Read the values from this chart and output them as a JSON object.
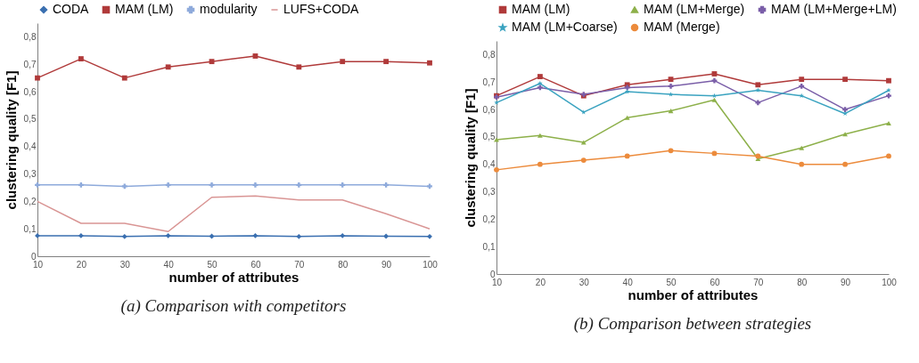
{
  "chart_data": [
    {
      "type": "line",
      "title": "(a)  Comparison with competitors",
      "xlabel": "number of attributes",
      "ylabel": "clustering quality [F1]",
      "categories": [
        "10",
        "20",
        "30",
        "40",
        "50",
        "60",
        "70",
        "80",
        "90",
        "100"
      ],
      "ylim": [
        0,
        0.85
      ],
      "yticks": [
        0,
        {
          "value": 0.1,
          "label": "0,1"
        },
        {
          "value": 0.2,
          "label": "0,2"
        },
        {
          "value": 0.3,
          "label": "0,3"
        },
        {
          "value": 0.4,
          "label": "0,4"
        },
        {
          "value": 0.5,
          "label": "0,5"
        },
        {
          "value": 0.6,
          "label": "0,6"
        },
        {
          "value": 0.7,
          "label": "0,7"
        },
        {
          "value": 0.8,
          "label": "0,8"
        }
      ],
      "legend": "top",
      "series": [
        {
          "name": "CODA",
          "color": "#3a6fb0",
          "marker": "diamond",
          "values": [
            0.075,
            0.075,
            0.072,
            0.075,
            0.073,
            0.075,
            0.072,
            0.075,
            0.073,
            0.072
          ]
        },
        {
          "name": "MAM (LM)",
          "color": "#b03a3a",
          "marker": "square",
          "values": [
            0.65,
            0.72,
            0.65,
            0.69,
            0.71,
            0.73,
            0.69,
            0.71,
            0.71,
            0.705
          ]
        },
        {
          "name": "modularity",
          "color": "#8eaadb",
          "marker": "cross",
          "values": [
            0.26,
            0.26,
            0.255,
            0.26,
            0.26,
            0.26,
            0.26,
            0.26,
            0.26,
            0.255
          ]
        },
        {
          "name": "LUFS+CODA",
          "color": "#d99594",
          "marker": "none",
          "values": [
            0.2,
            0.12,
            0.12,
            0.09,
            0.215,
            0.22,
            0.205,
            0.205,
            0.155,
            0.1
          ]
        }
      ]
    },
    {
      "type": "line",
      "title": "(b)  Comparison between strategies",
      "xlabel": "number of attributes",
      "ylabel": "clustering quality [F1]",
      "categories": [
        "10",
        "20",
        "30",
        "40",
        "50",
        "60",
        "70",
        "80",
        "90",
        "100"
      ],
      "ylim": [
        0,
        0.85
      ],
      "yticks": [
        0,
        {
          "value": 0.1,
          "label": "0,1"
        },
        {
          "value": 0.2,
          "label": "0,2"
        },
        {
          "value": 0.3,
          "label": "0,3"
        },
        {
          "value": 0.4,
          "label": "0,4"
        },
        {
          "value": 0.5,
          "label": "0,5"
        },
        {
          "value": 0.6,
          "label": "0,6"
        },
        {
          "value": 0.7,
          "label": "0,7"
        },
        {
          "value": 0.8,
          "label": "0,8"
        }
      ],
      "legend": "top",
      "series": [
        {
          "name": "MAM (LM)",
          "color": "#b03a3a",
          "marker": "square",
          "values": [
            0.65,
            0.72,
            0.65,
            0.69,
            0.71,
            0.73,
            0.69,
            0.71,
            0.71,
            0.705
          ]
        },
        {
          "name": "MAM (LM+Merge)",
          "color": "#8db04a",
          "marker": "triangle",
          "values": [
            0.49,
            0.505,
            0.48,
            0.57,
            0.595,
            0.635,
            0.42,
            0.46,
            0.51,
            0.55
          ]
        },
        {
          "name": "MAM (LM+Merge+LM)",
          "color": "#7a5ea8",
          "marker": "cross",
          "values": [
            0.645,
            0.68,
            0.655,
            0.68,
            0.685,
            0.705,
            0.625,
            0.685,
            0.6,
            0.65
          ]
        },
        {
          "name": "MAM (LM+Coarse)",
          "color": "#3ba3c0",
          "marker": "star",
          "values": [
            0.625,
            0.695,
            0.59,
            0.665,
            0.655,
            0.65,
            0.67,
            0.65,
            0.585,
            0.67
          ]
        },
        {
          "name": "MAM (Merge)",
          "color": "#ec8b3c",
          "marker": "circle",
          "values": [
            0.38,
            0.4,
            0.415,
            0.43,
            0.45,
            0.44,
            0.43,
            0.4,
            0.4,
            0.43
          ]
        }
      ]
    }
  ]
}
